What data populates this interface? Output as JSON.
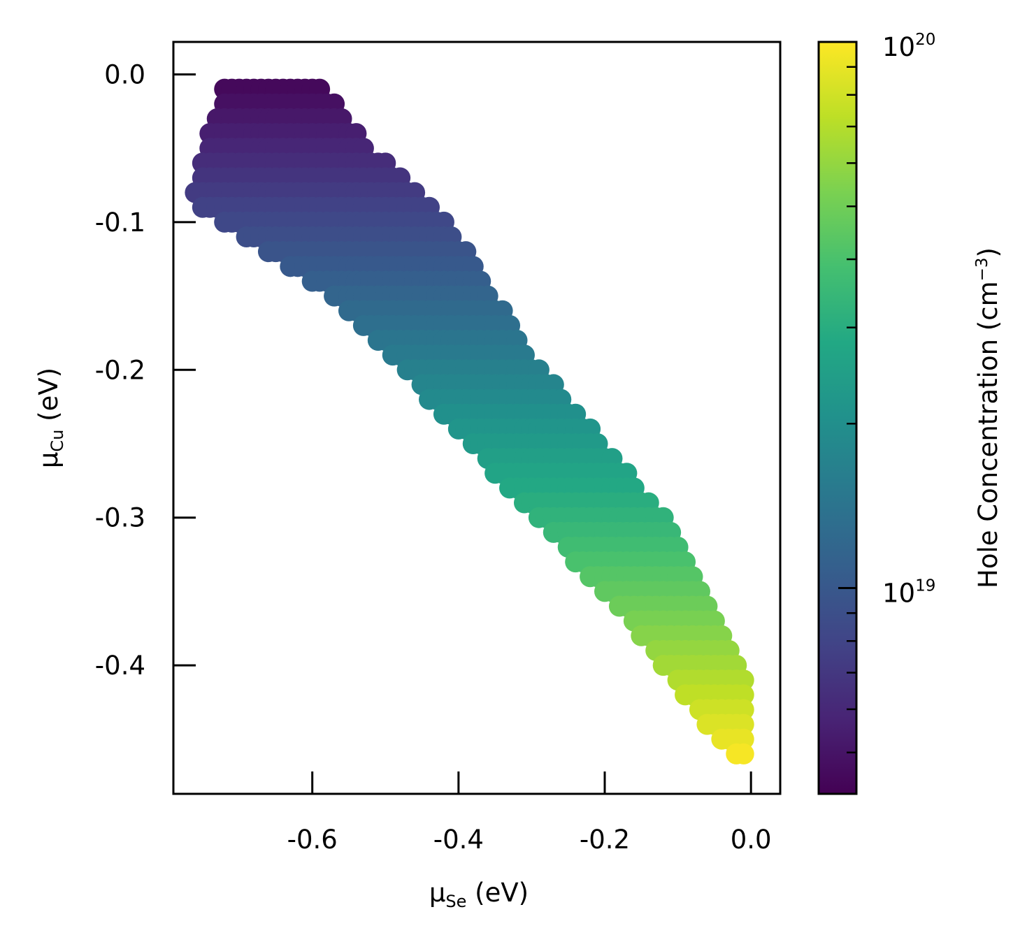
{
  "chart_data": {
    "type": "scatter",
    "xlabel": {
      "main": "μ",
      "sub": "Se",
      "unit": " (eV)"
    },
    "ylabel": {
      "main": "μ",
      "sub": "Cu",
      "unit": " (eV)"
    },
    "xlim": [
      -0.79,
      0.04
    ],
    "ylim": [
      -0.487,
      0.022
    ],
    "xticks": [
      {
        "value": -0.6,
        "label": "-0.6"
      },
      {
        "value": -0.4,
        "label": "-0.4"
      },
      {
        "value": -0.2,
        "label": "-0.2"
      },
      {
        "value": 0.0,
        "label": "0.0"
      }
    ],
    "yticks": [
      {
        "value": 0.0,
        "label": "0.0"
      },
      {
        "value": -0.1,
        "label": "-0.1"
      },
      {
        "value": -0.2,
        "label": "-0.2"
      },
      {
        "value": -0.3,
        "label": "-0.3"
      },
      {
        "value": -0.4,
        "label": "-0.4"
      }
    ],
    "colorbar": {
      "label": "Hole Concentration (cm",
      "label_sup": "−3",
      "label_close": ")",
      "scale": "log",
      "colormap": "viridis",
      "range": [
        4.2e+18,
        1e+20
      ],
      "ticks": [
        {
          "value": 1e+19,
          "base": "10",
          "exp": "19"
        },
        {
          "value": 1e+20,
          "base": "10",
          "exp": "20"
        }
      ]
    },
    "region": {
      "description_points_from": "filled region sampled on a grid; color is log hole concentration",
      "step": 0.01,
      "vertices": [
        [
          -0.712,
          0.0
        ],
        [
          -0.598,
          0.0
        ],
        [
          -0.52,
          -0.05
        ],
        [
          -0.42,
          -0.095
        ],
        [
          -0.3,
          -0.19
        ],
        [
          -0.1,
          -0.31
        ],
        [
          -0.04,
          -0.37
        ],
        [
          -0.005,
          -0.405
        ],
        [
          -0.01,
          -0.465
        ],
        [
          -0.06,
          -0.44
        ],
        [
          -0.15,
          -0.38
        ],
        [
          -0.25,
          -0.325
        ],
        [
          -0.55,
          -0.16
        ],
        [
          -0.72,
          -0.1
        ],
        [
          -0.767,
          -0.085
        ],
        [
          -0.74,
          -0.035
        ]
      ],
      "color_low": 4.2e+18,
      "color_high": 1e+20
    }
  }
}
